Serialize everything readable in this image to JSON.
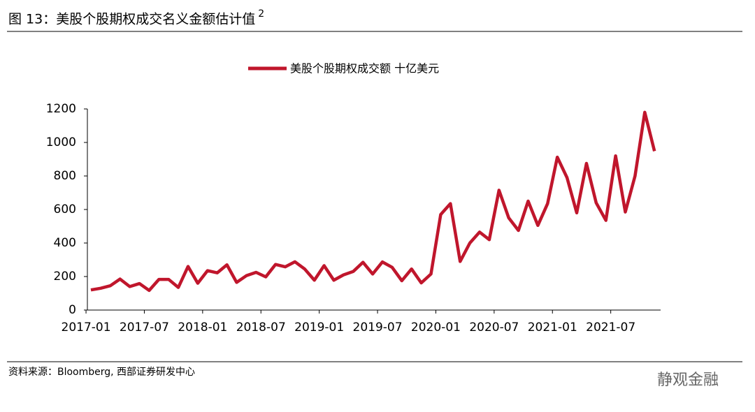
{
  "chart_data": {
    "type": "line",
    "title": "图 13：美股个股期权成交名义金额估计值",
    "title_note": "2",
    "source": "资料来源：Bloomberg, 西部证券研发中心",
    "watermark": "静观金融",
    "categories": [
      "2017-01",
      null,
      null,
      null,
      null,
      null,
      "2017-07",
      null,
      null,
      null,
      null,
      null,
      "2018-01",
      null,
      null,
      null,
      null,
      null,
      "2018-07",
      null,
      null,
      null,
      null,
      null,
      "2019-01",
      null,
      null,
      null,
      null,
      null,
      "2019-07",
      null,
      null,
      null,
      null,
      null,
      "2020-01",
      null,
      null,
      null,
      null,
      null,
      "2020-07",
      null,
      null,
      null,
      null,
      null,
      "2021-01",
      null,
      null,
      null,
      null,
      null,
      "2021-07",
      null,
      null,
      null,
      null
    ],
    "series": [
      {
        "name": "美股个股期权成交额 十亿美元",
        "color": "#c0162c",
        "values": [
          120,
          130,
          145,
          185,
          140,
          158,
          117,
          183,
          183,
          135,
          260,
          160,
          235,
          222,
          270,
          165,
          205,
          225,
          198,
          272,
          258,
          288,
          245,
          178,
          265,
          178,
          210,
          230,
          285,
          215,
          287,
          255,
          175,
          245,
          162,
          215,
          570,
          635,
          290,
          400,
          465,
          420,
          715,
          550,
          475,
          650,
          505,
          635,
          912,
          790,
          580,
          875,
          640,
          535,
          920,
          585,
          800,
          1180,
          948
        ]
      }
    ],
    "ylim": [
      0,
      1200
    ],
    "yticks": [
      0,
      200,
      400,
      600,
      800,
      1000,
      1200
    ],
    "legend": "top"
  }
}
